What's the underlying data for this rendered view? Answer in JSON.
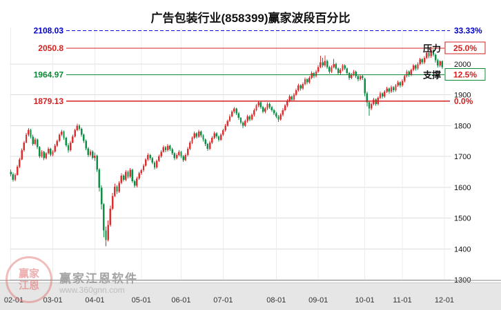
{
  "watermark": {
    "seal_text": "赢家江恩",
    "name": "赢家江恩软件",
    "url": "www.360gnn.com"
  },
  "chart_data": {
    "type": "candlestick",
    "title": "广告包装行业(858399)赢家波段百分比",
    "ylim": [
      1300,
      2118
    ],
    "y_ticks": [
      1300,
      1400,
      1500,
      1600,
      1700,
      1800,
      1900,
      2000
    ],
    "x_ticks": [
      {
        "label": "02-01",
        "i": 0
      },
      {
        "label": "03-01",
        "i": 19
      },
      {
        "label": "04-01",
        "i": 38
      },
      {
        "label": "05-01",
        "i": 59
      },
      {
        "label": "06-01",
        "i": 77
      },
      {
        "label": "07-01",
        "i": 96
      },
      {
        "label": "08-01",
        "i": 120
      },
      {
        "label": "09-01",
        "i": 139
      },
      {
        "label": "10-01",
        "i": 160
      },
      {
        "label": "11-01",
        "i": 177
      },
      {
        "label": "12-01",
        "i": 196
      }
    ],
    "colors": {
      "up": "#dd2f2f",
      "down": "#0e8f46",
      "grid": "#dcdcdc",
      "vgrid": "#ececec"
    },
    "levels": [
      {
        "price": 2108.03,
        "price_label": "2108.03",
        "pct_label": "33.33%",
        "color": "#0000cc",
        "pct_color": "#0000cc",
        "dash": true,
        "boxed": false
      },
      {
        "price": 2050.8,
        "price_label": "2050.8",
        "pct_label": "25.0%",
        "role_label": "压力",
        "color": "#d02020",
        "pct_color": "#d02020",
        "dash": false,
        "boxed": true
      },
      {
        "price": 1964.97,
        "price_label": "1964.97",
        "pct_label": "12.5%",
        "role_label": "支撑",
        "color": "#0e8a36",
        "pct_color": "#d02020",
        "dash": false,
        "boxed": true
      },
      {
        "price": 1879.13,
        "price_label": "1879.13",
        "pct_label": "0.0%",
        "color": "#d02020",
        "pct_color": "#d02020",
        "dash": false,
        "boxed": false
      }
    ],
    "candles": [
      [
        1650,
        1658,
        1635,
        1642
      ],
      [
        1642,
        1648,
        1618,
        1624
      ],
      [
        1624,
        1645,
        1620,
        1640
      ],
      [
        1640,
        1672,
        1638,
        1666
      ],
      [
        1666,
        1696,
        1662,
        1690
      ],
      [
        1690,
        1726,
        1688,
        1720
      ],
      [
        1720,
        1750,
        1716,
        1745
      ],
      [
        1745,
        1776,
        1742,
        1770
      ],
      [
        1770,
        1792,
        1765,
        1786
      ],
      [
        1786,
        1790,
        1758,
        1764
      ],
      [
        1764,
        1770,
        1735,
        1740
      ],
      [
        1740,
        1760,
        1736,
        1755
      ],
      [
        1755,
        1758,
        1724,
        1730
      ],
      [
        1730,
        1734,
        1694,
        1700
      ],
      [
        1700,
        1720,
        1696,
        1715
      ],
      [
        1715,
        1718,
        1688,
        1694
      ],
      [
        1694,
        1714,
        1690,
        1710
      ],
      [
        1710,
        1730,
        1706,
        1725
      ],
      [
        1725,
        1728,
        1700,
        1706
      ],
      [
        1706,
        1720,
        1700,
        1716
      ],
      [
        1716,
        1740,
        1712,
        1735
      ],
      [
        1735,
        1755,
        1730,
        1750
      ],
      [
        1750,
        1775,
        1746,
        1770
      ],
      [
        1770,
        1786,
        1766,
        1780
      ],
      [
        1780,
        1784,
        1754,
        1760
      ],
      [
        1760,
        1764,
        1730,
        1736
      ],
      [
        1736,
        1742,
        1712,
        1720
      ],
      [
        1720,
        1750,
        1716,
        1745
      ],
      [
        1745,
        1770,
        1742,
        1765
      ],
      [
        1765,
        1790,
        1762,
        1785
      ],
      [
        1785,
        1806,
        1782,
        1800
      ],
      [
        1800,
        1804,
        1784,
        1790
      ],
      [
        1790,
        1794,
        1764,
        1770
      ],
      [
        1770,
        1774,
        1744,
        1750
      ],
      [
        1750,
        1755,
        1720,
        1726
      ],
      [
        1726,
        1730,
        1698,
        1705
      ],
      [
        1705,
        1722,
        1700,
        1716
      ],
      [
        1716,
        1720,
        1690,
        1696
      ],
      [
        1696,
        1712,
        1685,
        1702
      ],
      [
        1702,
        1706,
        1650,
        1658
      ],
      [
        1658,
        1662,
        1586,
        1598
      ],
      [
        1598,
        1606,
        1528,
        1545
      ],
      [
        1545,
        1548,
        1438,
        1460
      ],
      [
        1460,
        1472,
        1408,
        1428
      ],
      [
        1428,
        1492,
        1424,
        1478
      ],
      [
        1478,
        1540,
        1472,
        1530
      ],
      [
        1530,
        1582,
        1526,
        1572
      ],
      [
        1572,
        1612,
        1568,
        1602
      ],
      [
        1602,
        1606,
        1578,
        1586
      ],
      [
        1586,
        1620,
        1582,
        1614
      ],
      [
        1614,
        1645,
        1610,
        1638
      ],
      [
        1638,
        1642,
        1618,
        1624
      ],
      [
        1624,
        1655,
        1620,
        1650
      ],
      [
        1650,
        1654,
        1628,
        1634
      ],
      [
        1634,
        1662,
        1630,
        1656
      ],
      [
        1656,
        1660,
        1614,
        1620
      ],
      [
        1620,
        1624,
        1598,
        1605
      ],
      [
        1605,
        1634,
        1600,
        1628
      ],
      [
        1628,
        1650,
        1624,
        1645
      ],
      [
        1645,
        1660,
        1640,
        1655
      ],
      [
        1655,
        1676,
        1650,
        1670
      ],
      [
        1670,
        1695,
        1666,
        1690
      ],
      [
        1690,
        1710,
        1686,
        1705
      ],
      [
        1705,
        1708,
        1688,
        1694
      ],
      [
        1694,
        1698,
        1674,
        1680
      ],
      [
        1680,
        1684,
        1658,
        1664
      ],
      [
        1664,
        1690,
        1660,
        1685
      ],
      [
        1685,
        1706,
        1682,
        1700
      ],
      [
        1700,
        1720,
        1696,
        1715
      ],
      [
        1715,
        1736,
        1712,
        1730
      ],
      [
        1730,
        1734,
        1714,
        1720
      ],
      [
        1720,
        1740,
        1716,
        1735
      ],
      [
        1735,
        1738,
        1718,
        1724
      ],
      [
        1724,
        1728,
        1704,
        1710
      ],
      [
        1710,
        1714,
        1688,
        1695
      ],
      [
        1695,
        1710,
        1690,
        1705
      ],
      [
        1705,
        1720,
        1700,
        1715
      ],
      [
        1715,
        1718,
        1694,
        1700
      ],
      [
        1700,
        1704,
        1682,
        1688
      ],
      [
        1688,
        1710,
        1684,
        1705
      ],
      [
        1705,
        1730,
        1700,
        1725
      ],
      [
        1725,
        1750,
        1720,
        1745
      ],
      [
        1745,
        1765,
        1740,
        1760
      ],
      [
        1760,
        1780,
        1756,
        1775
      ],
      [
        1775,
        1778,
        1758,
        1764
      ],
      [
        1764,
        1786,
        1760,
        1780
      ],
      [
        1780,
        1784,
        1762,
        1768
      ],
      [
        1768,
        1772,
        1748,
        1755
      ],
      [
        1755,
        1758,
        1734,
        1740
      ],
      [
        1740,
        1744,
        1718,
        1725
      ],
      [
        1725,
        1750,
        1720,
        1745
      ],
      [
        1745,
        1766,
        1740,
        1760
      ],
      [
        1760,
        1780,
        1756,
        1775
      ],
      [
        1775,
        1778,
        1758,
        1765
      ],
      [
        1765,
        1768,
        1748,
        1754
      ],
      [
        1754,
        1775,
        1750,
        1770
      ],
      [
        1770,
        1790,
        1766,
        1785
      ],
      [
        1785,
        1805,
        1780,
        1800
      ],
      [
        1800,
        1820,
        1796,
        1815
      ],
      [
        1815,
        1836,
        1812,
        1830
      ],
      [
        1830,
        1850,
        1826,
        1845
      ],
      [
        1845,
        1860,
        1840,
        1855
      ],
      [
        1855,
        1858,
        1834,
        1840
      ],
      [
        1840,
        1844,
        1818,
        1825
      ],
      [
        1825,
        1828,
        1804,
        1810
      ],
      [
        1810,
        1814,
        1792,
        1800
      ],
      [
        1800,
        1820,
        1796,
        1815
      ],
      [
        1815,
        1835,
        1810,
        1830
      ],
      [
        1830,
        1834,
        1814,
        1820
      ],
      [
        1820,
        1840,
        1816,
        1835
      ],
      [
        1835,
        1855,
        1830,
        1850
      ],
      [
        1850,
        1870,
        1846,
        1865
      ],
      [
        1865,
        1880,
        1860,
        1875
      ],
      [
        1875,
        1878,
        1854,
        1860
      ],
      [
        1860,
        1864,
        1840,
        1845
      ],
      [
        1845,
        1860,
        1840,
        1855
      ],
      [
        1855,
        1875,
        1850,
        1870
      ],
      [
        1870,
        1874,
        1854,
        1860
      ],
      [
        1860,
        1864,
        1844,
        1850
      ],
      [
        1850,
        1854,
        1834,
        1840
      ],
      [
        1840,
        1844,
        1824,
        1830
      ],
      [
        1830,
        1834,
        1812,
        1820
      ],
      [
        1820,
        1840,
        1816,
        1835
      ],
      [
        1835,
        1856,
        1830,
        1850
      ],
      [
        1850,
        1870,
        1846,
        1865
      ],
      [
        1865,
        1886,
        1860,
        1880
      ],
      [
        1880,
        1900,
        1876,
        1895
      ],
      [
        1895,
        1898,
        1878,
        1885
      ],
      [
        1885,
        1906,
        1880,
        1900
      ],
      [
        1900,
        1920,
        1896,
        1915
      ],
      [
        1915,
        1936,
        1910,
        1930
      ],
      [
        1930,
        1934,
        1914,
        1920
      ],
      [
        1920,
        1940,
        1916,
        1935
      ],
      [
        1935,
        1956,
        1930,
        1950
      ],
      [
        1950,
        1954,
        1934,
        1940
      ],
      [
        1940,
        1960,
        1936,
        1955
      ],
      [
        1955,
        1976,
        1950,
        1970
      ],
      [
        1970,
        1974,
        1954,
        1960
      ],
      [
        1960,
        1980,
        1956,
        1975
      ],
      [
        1975,
        1996,
        1970,
        1990
      ],
      [
        1990,
        2026,
        1986,
        2005
      ],
      [
        2005,
        2020,
        1988,
        1995
      ],
      [
        1995,
        2028,
        1990,
        2010
      ],
      [
        2010,
        2014,
        1984,
        1990
      ],
      [
        1990,
        1994,
        1968,
        1975
      ],
      [
        1975,
        1995,
        1970,
        1990
      ],
      [
        1990,
        2016,
        1986,
        2000
      ],
      [
        2000,
        2004,
        1980,
        1985
      ],
      [
        1985,
        1988,
        1964,
        1970
      ],
      [
        1970,
        1986,
        1966,
        1980
      ],
      [
        1980,
        2000,
        1976,
        1995
      ],
      [
        1995,
        1998,
        1980,
        1985
      ],
      [
        1985,
        1988,
        1964,
        1970
      ],
      [
        1970,
        1974,
        1948,
        1955
      ],
      [
        1955,
        1970,
        1950,
        1965
      ],
      [
        1965,
        1980,
        1960,
        1975
      ],
      [
        1975,
        1978,
        1955,
        1960
      ],
      [
        1960,
        1964,
        1944,
        1950
      ],
      [
        1950,
        1966,
        1946,
        1960
      ],
      [
        1960,
        1964,
        1948,
        1955
      ],
      [
        1952,
        1955,
        1896,
        1905
      ],
      [
        1905,
        1910,
        1862,
        1875
      ],
      [
        1875,
        1880,
        1832,
        1855
      ],
      [
        1855,
        1875,
        1850,
        1870
      ],
      [
        1870,
        1890,
        1866,
        1885
      ],
      [
        1885,
        1888,
        1864,
        1870
      ],
      [
        1870,
        1895,
        1866,
        1890
      ],
      [
        1890,
        1910,
        1886,
        1905
      ],
      [
        1905,
        1908,
        1888,
        1895
      ],
      [
        1895,
        1915,
        1890,
        1910
      ],
      [
        1910,
        1926,
        1906,
        1920
      ],
      [
        1920,
        1924,
        1904,
        1910
      ],
      [
        1910,
        1930,
        1906,
        1925
      ],
      [
        1925,
        1928,
        1908,
        1915
      ],
      [
        1915,
        1935,
        1910,
        1930
      ],
      [
        1930,
        1946,
        1926,
        1940
      ],
      [
        1940,
        1944,
        1924,
        1930
      ],
      [
        1930,
        1950,
        1926,
        1945
      ],
      [
        1945,
        1964,
        1940,
        1960
      ],
      [
        1960,
        1980,
        1956,
        1975
      ],
      [
        1975,
        1978,
        1958,
        1965
      ],
      [
        1965,
        1985,
        1960,
        1980
      ],
      [
        1980,
        2000,
        1976,
        1995
      ],
      [
        1995,
        1998,
        1978,
        1985
      ],
      [
        1985,
        2005,
        1980,
        2000
      ],
      [
        2000,
        2020,
        1996,
        2015
      ],
      [
        2015,
        2018,
        1998,
        2005
      ],
      [
        2005,
        2025,
        2000,
        2020
      ],
      [
        2020,
        2040,
        2016,
        2035
      ],
      [
        2035,
        2038,
        2018,
        2025
      ],
      [
        2025,
        2056,
        2020,
        2045
      ],
      [
        2045,
        2048,
        2024,
        2030
      ],
      [
        2030,
        2034,
        2004,
        2012
      ],
      [
        2012,
        2016,
        1988,
        1995
      ],
      [
        1995,
        2012,
        1990,
        2008
      ],
      [
        2008,
        2012,
        1984,
        1990
      ]
    ]
  }
}
